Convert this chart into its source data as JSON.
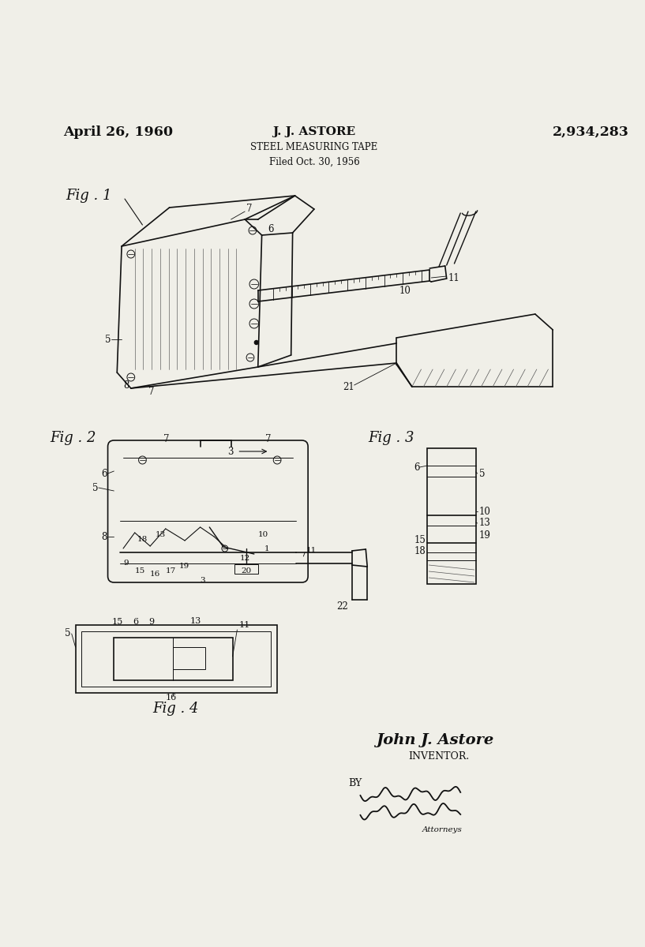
{
  "bg_color": "#f0efe8",
  "title_date": "April 26, 1960",
  "title_name": "J. J. ASTORE",
  "title_patent": "2,934,283",
  "subtitle1": "STEEL MEASURING TAPE",
  "subtitle2": "Filed Oct. 30, 1956",
  "inventor_name": "John J. Astore",
  "inventor_label": "INVENTOR.",
  "attorney_by": "BY",
  "fig1_label": "Fig . 1",
  "fig2_label": "Fig . 2",
  "fig3_label": "Fig . 3",
  "fig4_label": "Fig . 4",
  "line_color": "#111111",
  "lw_thin": 0.7,
  "lw_med": 1.2,
  "lw_thick": 1.8
}
